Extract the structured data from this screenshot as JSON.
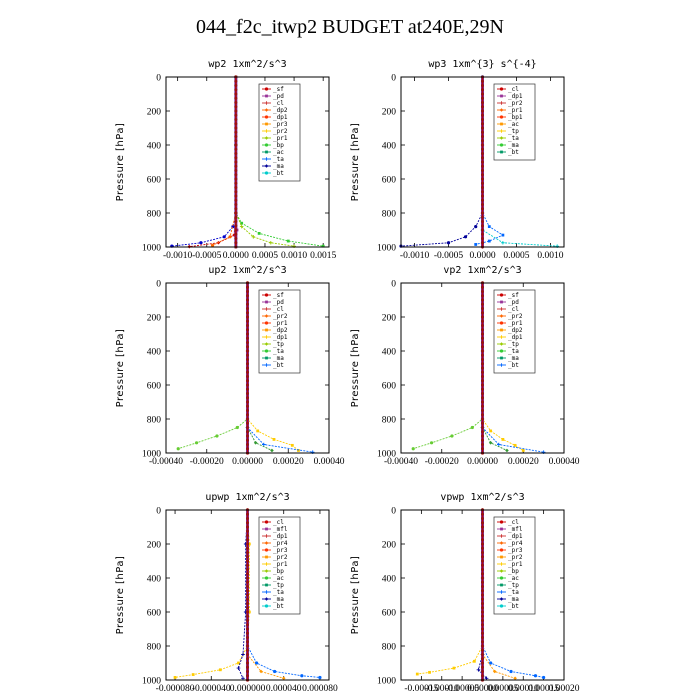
{
  "figure_title": "044_f2c_itwp2  BUDGET at240E,29N",
  "chart_data": [
    {
      "type": "line",
      "title": "wp2  1xm^2/s^3",
      "ylabel": "Pressure [hPa]",
      "xlim": [
        -0.0012,
        0.0016
      ],
      "ylim": [
        1000,
        0
      ],
      "xticks": [
        -0.001,
        -0.0005,
        0.0,
        0.0005,
        0.001,
        0.0015
      ],
      "xtick_labels": [
        "-0.0010",
        "-0.0005",
        "0.0000",
        "0.0005",
        "0.0010",
        "0.0015"
      ],
      "yticks": [
        0,
        200,
        400,
        600,
        800,
        1000
      ],
      "legend": [
        "_sf",
        "_pd",
        "_cl",
        "_dp2",
        "_dp1",
        "_pr3",
        "_pr2",
        "_pr1",
        "_bp",
        "_ac",
        "_ta",
        "_ma",
        "_bt"
      ],
      "series": [
        {
          "name": "_pd",
          "color": "#0000cc",
          "points": [
            [
              0,
              0
            ],
            [
              0,
              400
            ],
            [
              0,
              800
            ],
            [
              -5e-05,
              880
            ],
            [
              -0.0002,
              940
            ],
            [
              -0.0006,
              975
            ],
            [
              -0.0011,
              995
            ]
          ]
        },
        {
          "name": "_dp1",
          "color": "#33cc33",
          "points": [
            [
              0,
              0
            ],
            [
              0,
              400
            ],
            [
              0,
              800
            ],
            [
              0.0001,
              860
            ],
            [
              0.0004,
              920
            ],
            [
              0.0009,
              965
            ],
            [
              0.0015,
              995
            ]
          ]
        },
        {
          "name": "_pr1",
          "color": "#99cc00",
          "points": [
            [
              0,
              0
            ],
            [
              0,
              400
            ],
            [
              0,
              800
            ],
            [
              0.0001,
              880
            ],
            [
              0.0003,
              940
            ],
            [
              0.0006,
              975
            ],
            [
              0.001,
              995
            ]
          ]
        },
        {
          "name": "_sf",
          "color": "#cc0000",
          "points": [
            [
              0,
              0
            ],
            [
              0,
              800
            ],
            [
              -3e-05,
              930
            ],
            [
              -0.0003,
              975
            ],
            [
              -0.0008,
              998
            ]
          ]
        },
        {
          "name": "_dp2",
          "color": "#ff6600",
          "points": [
            [
              0,
              0
            ],
            [
              0,
              800
            ],
            [
              -0.0001,
              940
            ],
            [
              -0.0004,
              990
            ]
          ]
        },
        {
          "name": "_bt",
          "color": "#993399",
          "points": [
            [
              0,
              0
            ],
            [
              0,
              400
            ],
            [
              0,
              800
            ],
            [
              2e-05,
              900
            ],
            [
              0,
              1000
            ]
          ]
        }
      ]
    },
    {
      "type": "line",
      "title": "wp3  1xm^{3} s^{-4}",
      "ylabel": "Pressure [hPa]",
      "xlim": [
        -0.0012,
        0.0012
      ],
      "ylim": [
        1000,
        0
      ],
      "xticks": [
        -0.001,
        -0.0005,
        0.0,
        0.0005,
        0.001
      ],
      "xtick_labels": [
        "-0.0010",
        "-0.0005",
        "0.0000",
        "0.0005",
        "0.0010"
      ],
      "yticks": [
        0,
        200,
        400,
        600,
        800,
        1000
      ],
      "legend": [
        "_cl",
        "_dp1",
        "_pr2",
        "_pr1",
        "_bp1",
        "_ac",
        "_tp",
        "_ta",
        "_ma",
        "_bt"
      ],
      "series": [
        {
          "name": "_ta",
          "color": "#000099",
          "points": [
            [
              0,
              0
            ],
            [
              0,
              800
            ],
            [
              -0.0001,
              880
            ],
            [
              -0.00025,
              940
            ],
            [
              -0.0005,
              975
            ],
            [
              -0.0012,
              995
            ]
          ]
        },
        {
          "name": "_tp",
          "color": "#0066ff",
          "points": [
            [
              0,
              0
            ],
            [
              0,
              800
            ],
            [
              0.0001,
              880
            ],
            [
              0.0003,
              930
            ],
            [
              0.0001,
              965
            ],
            [
              -0.0001,
              985
            ]
          ]
        },
        {
          "name": "_ma",
          "color": "#00cccc",
          "points": [
            [
              0,
              0
            ],
            [
              0,
              900
            ],
            [
              0.0003,
              975
            ],
            [
              0.0011,
              995
            ]
          ]
        },
        {
          "name": "_cl",
          "color": "#cc0000",
          "points": [
            [
              0,
              0
            ],
            [
              0,
              400
            ],
            [
              0,
              800
            ],
            [
              0,
              1000
            ]
          ]
        }
      ]
    },
    {
      "type": "line",
      "title": "up2  1xm^2/s^3",
      "ylabel": "Pressure [hPa]",
      "xlim": [
        -0.0004,
        0.0004
      ],
      "ylim": [
        1000,
        0
      ],
      "xticks": [
        -0.0004,
        -0.0002,
        0.0,
        0.0002,
        0.0004
      ],
      "xtick_labels": [
        "-0.00040",
        "-0.00020",
        "0.00000",
        "0.00020",
        "0.00040"
      ],
      "yticks": [
        0,
        200,
        400,
        600,
        800,
        1000
      ],
      "legend": [
        "_sf",
        "_pd",
        "_cl",
        "_pr2",
        "_pr1",
        "_dp2",
        "_dp1",
        "_tp",
        "_ta",
        "_ma",
        "_bt"
      ],
      "series": [
        {
          "name": "_dp1",
          "color": "#66cc33",
          "points": [
            [
              0,
              0
            ],
            [
              0,
              400
            ],
            [
              0,
              800
            ],
            [
              -5e-05,
              850
            ],
            [
              -0.00015,
              900
            ],
            [
              -0.00025,
              940
            ],
            [
              -0.00034,
              975
            ]
          ]
        },
        {
          "name": "_pr1",
          "color": "#ffcc00",
          "points": [
            [
              0,
              0
            ],
            [
              0,
              400
            ],
            [
              0,
              800
            ],
            [
              5e-05,
              870
            ],
            [
              0.00013,
              920
            ],
            [
              0.00022,
              955
            ],
            [
              0.00025,
              985
            ]
          ]
        },
        {
          "name": "_tp",
          "color": "#0066ff",
          "points": [
            [
              0,
              0
            ],
            [
              0,
              850
            ],
            [
              8e-05,
              950
            ],
            [
              0.00032,
              995
            ]
          ]
        },
        {
          "name": "_dp2",
          "color": "#339933",
          "points": [
            [
              0,
              0
            ],
            [
              0,
              850
            ],
            [
              4e-05,
              940
            ],
            [
              0.00012,
              985
            ]
          ]
        },
        {
          "name": "_cl",
          "color": "#cc0000",
          "points": [
            [
              0,
              0
            ],
            [
              0,
              400
            ],
            [
              0,
              800
            ],
            [
              0,
              1000
            ]
          ]
        }
      ]
    },
    {
      "type": "line",
      "title": "vp2  1xm^2/s^3",
      "ylabel": "Pressure [hPa]",
      "xlim": [
        -0.0004,
        0.0004
      ],
      "ylim": [
        1000,
        0
      ],
      "xticks": [
        -0.0004,
        -0.0002,
        0.0,
        0.0002,
        0.0004
      ],
      "xtick_labels": [
        "-0.00040",
        "-0.00020",
        "0.00000",
        "0.00020",
        "0.00040"
      ],
      "yticks": [
        0,
        200,
        400,
        600,
        800,
        1000
      ],
      "legend": [
        "_sf",
        "_pd",
        "_cl",
        "_pr2",
        "_pr1",
        "_dp2",
        "_dp1",
        "_tp",
        "_ta",
        "_ma",
        "_bt"
      ],
      "series": [
        {
          "name": "_dp1",
          "color": "#66cc33",
          "points": [
            [
              0,
              0
            ],
            [
              0,
              400
            ],
            [
              0,
              800
            ],
            [
              -5e-05,
              850
            ],
            [
              -0.00015,
              900
            ],
            [
              -0.00025,
              940
            ],
            [
              -0.00034,
              975
            ]
          ]
        },
        {
          "name": "_pr1",
          "color": "#ffcc00",
          "points": [
            [
              0,
              0
            ],
            [
              0,
              400
            ],
            [
              0,
              800
            ],
            [
              4e-05,
              870
            ],
            [
              0.0001,
              920
            ],
            [
              0.00016,
              955
            ],
            [
              0.0002,
              985
            ]
          ]
        },
        {
          "name": "_tp",
          "color": "#0066ff",
          "points": [
            [
              0,
              0
            ],
            [
              0,
              850
            ],
            [
              8e-05,
              950
            ],
            [
              0.0003,
              995
            ]
          ]
        },
        {
          "name": "_dp2",
          "color": "#339933",
          "points": [
            [
              0,
              0
            ],
            [
              0,
              850
            ],
            [
              4e-05,
              940
            ],
            [
              0.00012,
              985
            ]
          ]
        },
        {
          "name": "_cl",
          "color": "#cc0000",
          "points": [
            [
              0,
              0
            ],
            [
              0,
              400
            ],
            [
              0,
              800
            ],
            [
              0,
              1000
            ]
          ]
        }
      ]
    },
    {
      "type": "line",
      "title": "upwp  1xm^2/s^3",
      "ylabel": "Pressure [hPa]",
      "xlim": [
        -9e-05,
        9e-05
      ],
      "ylim": [
        1000,
        0
      ],
      "xticks": [
        -8e-05,
        -4e-05,
        0.0,
        4e-05,
        8e-05
      ],
      "xtick_labels": [
        "-0.000080",
        "-0.000040",
        "0.000000",
        "0.000040",
        "0.000080"
      ],
      "yticks": [
        0,
        200,
        400,
        600,
        800,
        1000
      ],
      "legend": [
        "_cl",
        "_mfl",
        "_dp1",
        "_pr4",
        "_pr3",
        "_pr2",
        "_pr1",
        "_bp",
        "_ac",
        "_tp",
        "_ta",
        "_ma",
        "_bt"
      ],
      "series": [
        {
          "name": "_tp",
          "color": "#0066ff",
          "points": [
            [
              0,
              0
            ],
            [
              0,
              400
            ],
            [
              0,
              800
            ],
            [
              1e-05,
              900
            ],
            [
              3e-05,
              950
            ],
            [
              6e-05,
              975
            ],
            [
              8e-05,
              985
            ]
          ]
        },
        {
          "name": "_pr1",
          "color": "#ffcc00",
          "points": [
            [
              0,
              0
            ],
            [
              2e-06,
              200
            ],
            [
              2e-06,
              600
            ],
            [
              0,
              800
            ],
            [
              -1e-05,
              900
            ],
            [
              -3e-05,
              940
            ],
            [
              -6e-05,
              968
            ],
            [
              -8e-05,
              985
            ]
          ]
        },
        {
          "name": "_ta",
          "color": "#000099",
          "points": [
            [
              0,
              0
            ],
            [
              -2e-06,
              200
            ],
            [
              -2e-06,
              600
            ],
            [
              -5e-06,
              850
            ],
            [
              -1e-05,
              930
            ],
            [
              -5e-06,
              990
            ]
          ]
        },
        {
          "name": "_pr2",
          "color": "#ff9900",
          "points": [
            [
              0,
              0
            ],
            [
              0,
              850
            ],
            [
              1.5e-05,
              950
            ],
            [
              4e-05,
              990
            ]
          ]
        },
        {
          "name": "_cl",
          "color": "#cc0000",
          "points": [
            [
              0,
              0
            ],
            [
              0,
              400
            ],
            [
              0,
              800
            ],
            [
              0,
              1000
            ]
          ]
        }
      ]
    },
    {
      "type": "line",
      "title": "vpwp  1xm^2/s^3",
      "ylabel": "Pressure [hPa]",
      "xlim": [
        -0.0002,
        0.0002
      ],
      "ylim": [
        1000,
        0
      ],
      "xticks": [
        -0.00015,
        -0.0001,
        -5e-05,
        0.0,
        5e-05,
        0.0001,
        0.00015,
        0.0002
      ],
      "xtick_labels": [
        "-0.00015",
        "-0.00010",
        "-0.00005",
        "0.00000",
        "0.00005",
        "0.00010",
        "0.00015",
        "0.00020"
      ],
      "yticks": [
        0,
        200,
        400,
        600,
        800,
        1000
      ],
      "legend": [
        "_cl",
        "_mfl",
        "_dp1",
        "_pr4",
        "_pr3",
        "_pr2",
        "_pr1",
        "_bp",
        "_ac",
        "_tp",
        "_ta",
        "_ma",
        "_bt"
      ],
      "series": [
        {
          "name": "_tp",
          "color": "#0066ff",
          "points": [
            [
              0,
              0
            ],
            [
              0,
              400
            ],
            [
              0,
              800
            ],
            [
              2e-05,
              900
            ],
            [
              7e-05,
              950
            ],
            [
              0.00013,
              975
            ],
            [
              0.00015,
              985
            ]
          ]
        },
        {
          "name": "_pr1",
          "color": "#ffcc00",
          "points": [
            [
              0,
              0
            ],
            [
              0,
              400
            ],
            [
              0,
              800
            ],
            [
              -2e-05,
              890
            ],
            [
              -7e-05,
              930
            ],
            [
              -0.00013,
              955
            ],
            [
              -0.00016,
              965
            ]
          ]
        },
        {
          "name": "_ta",
          "color": "#000099",
          "points": [
            [
              0,
              0
            ],
            [
              0,
              850
            ],
            [
              -1e-05,
              940
            ],
            [
              1e-05,
              990
            ]
          ]
        },
        {
          "name": "_pr2",
          "color": "#ff9900",
          "points": [
            [
              0,
              0
            ],
            [
              0,
              850
            ],
            [
              3e-05,
              950
            ],
            [
              8e-05,
              990
            ]
          ]
        },
        {
          "name": "_cl",
          "color": "#cc0000",
          "points": [
            [
              0,
              0
            ],
            [
              0,
              400
            ],
            [
              0,
              800
            ],
            [
              0,
              1000
            ]
          ]
        }
      ]
    }
  ]
}
